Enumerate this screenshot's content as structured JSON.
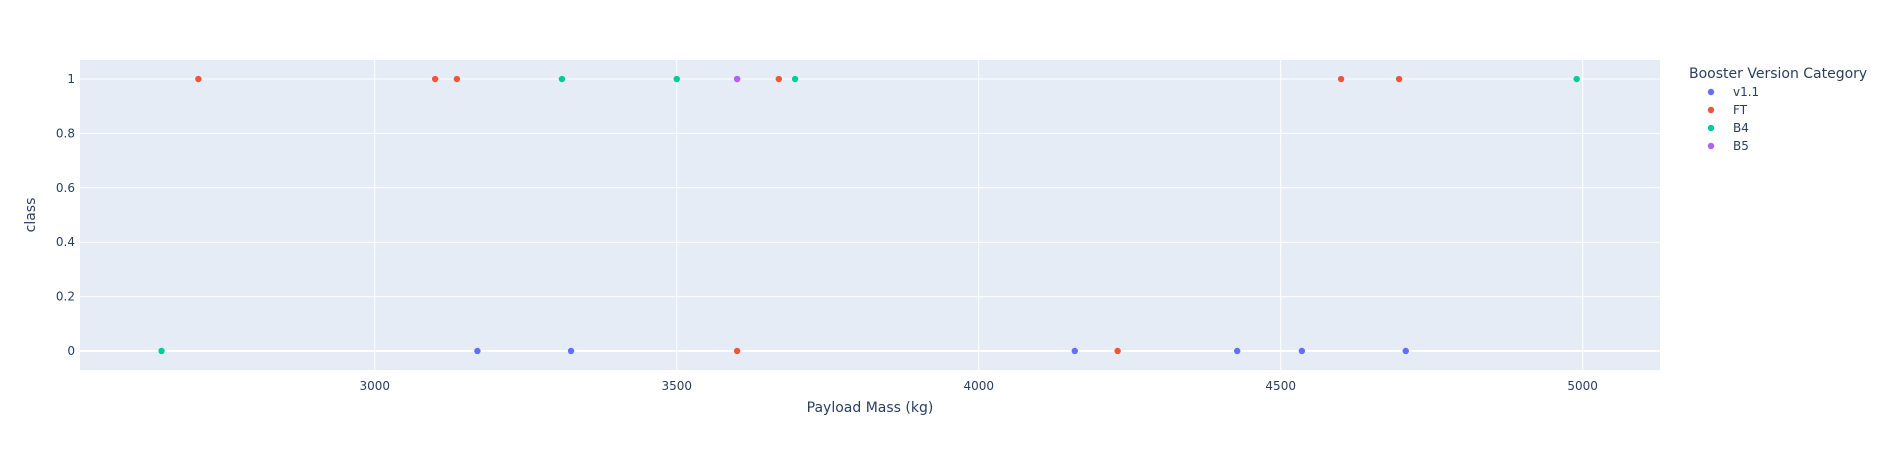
{
  "chart_data": {
    "type": "scatter",
    "title": "",
    "xlabel": "Payload Mass (kg)",
    "ylabel": "class",
    "xlim": [
      2512,
      5128
    ],
    "ylim": [
      -0.07,
      1.07
    ],
    "x_ticks": [
      3000,
      3500,
      4000,
      4500,
      5000
    ],
    "y_ticks": [
      0,
      0.2,
      0.4,
      0.6,
      0.8,
      1
    ],
    "grid": true,
    "legend_title": "Booster Version Category",
    "legend_position": "right",
    "plot_background": "#E5ECF6",
    "series": [
      {
        "name": "v1.1",
        "color": "#636EFA",
        "points": [
          {
            "x": 3170,
            "y": 0
          },
          {
            "x": 3325,
            "y": 0
          },
          {
            "x": 4159,
            "y": 0
          },
          {
            "x": 4428,
            "y": 0
          },
          {
            "x": 4535,
            "y": 0
          },
          {
            "x": 4707,
            "y": 0
          }
        ]
      },
      {
        "name": "FT",
        "color": "#EF553B",
        "points": [
          {
            "x": 2708,
            "y": 1
          },
          {
            "x": 3100,
            "y": 1
          },
          {
            "x": 3136,
            "y": 1
          },
          {
            "x": 3600,
            "y": 1
          },
          {
            "x": 3669,
            "y": 1
          },
          {
            "x": 3600,
            "y": 0
          },
          {
            "x": 4230,
            "y": 0
          },
          {
            "x": 4600,
            "y": 1
          },
          {
            "x": 4696,
            "y": 1
          }
        ]
      },
      {
        "name": "B4",
        "color": "#00CC96",
        "points": [
          {
            "x": 2647,
            "y": 0
          },
          {
            "x": 3310,
            "y": 1
          },
          {
            "x": 3500,
            "y": 1
          },
          {
            "x": 3696,
            "y": 1
          },
          {
            "x": 4990,
            "y": 1
          }
        ]
      },
      {
        "name": "B5",
        "color": "#AB63FA",
        "points": [
          {
            "x": 3600,
            "y": 1
          }
        ]
      }
    ]
  }
}
